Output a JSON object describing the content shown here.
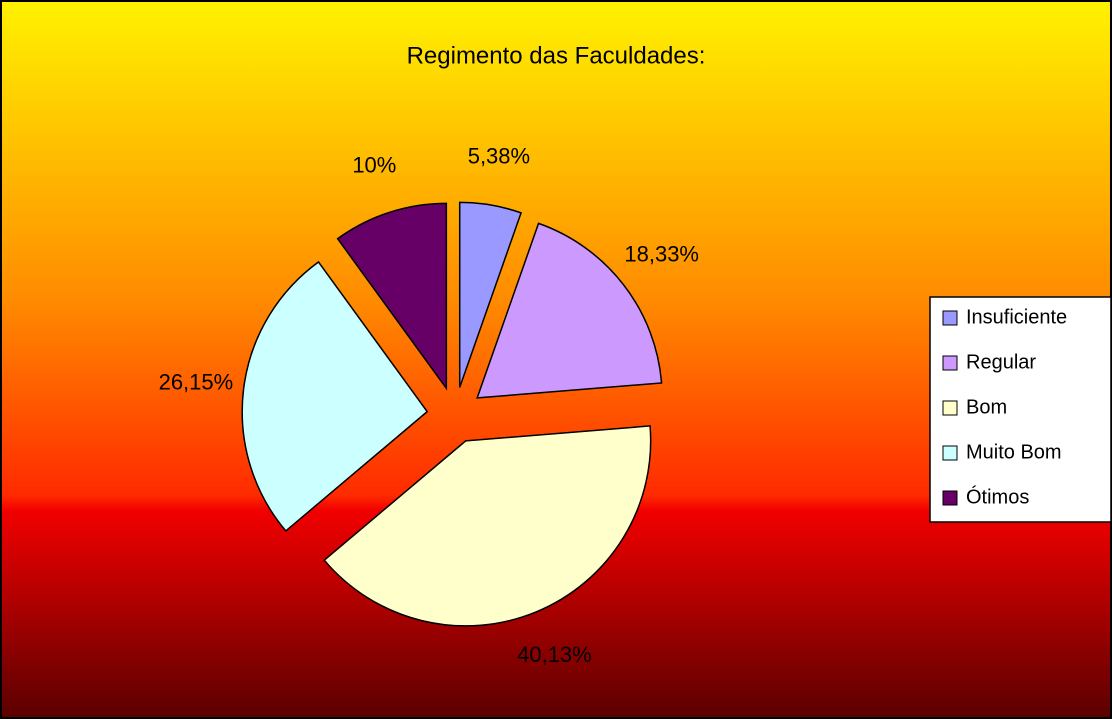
{
  "chart_data": {
    "type": "pie",
    "title": "Regimento das Faculdades:",
    "categories": [
      "Insuficiente",
      "Regular",
      "Bom",
      "Muito Bom",
      "Ótimos"
    ],
    "values": [
      5.38,
      18.33,
      40.13,
      26.15,
      10
    ],
    "value_labels": [
      "5,38%",
      "18,33%",
      "40,13%",
      "26,15%",
      "10%"
    ],
    "colors": [
      "#9999ff",
      "#cc99ff",
      "#ffffcc",
      "#ccffff",
      "#660066"
    ],
    "legend": "right"
  }
}
